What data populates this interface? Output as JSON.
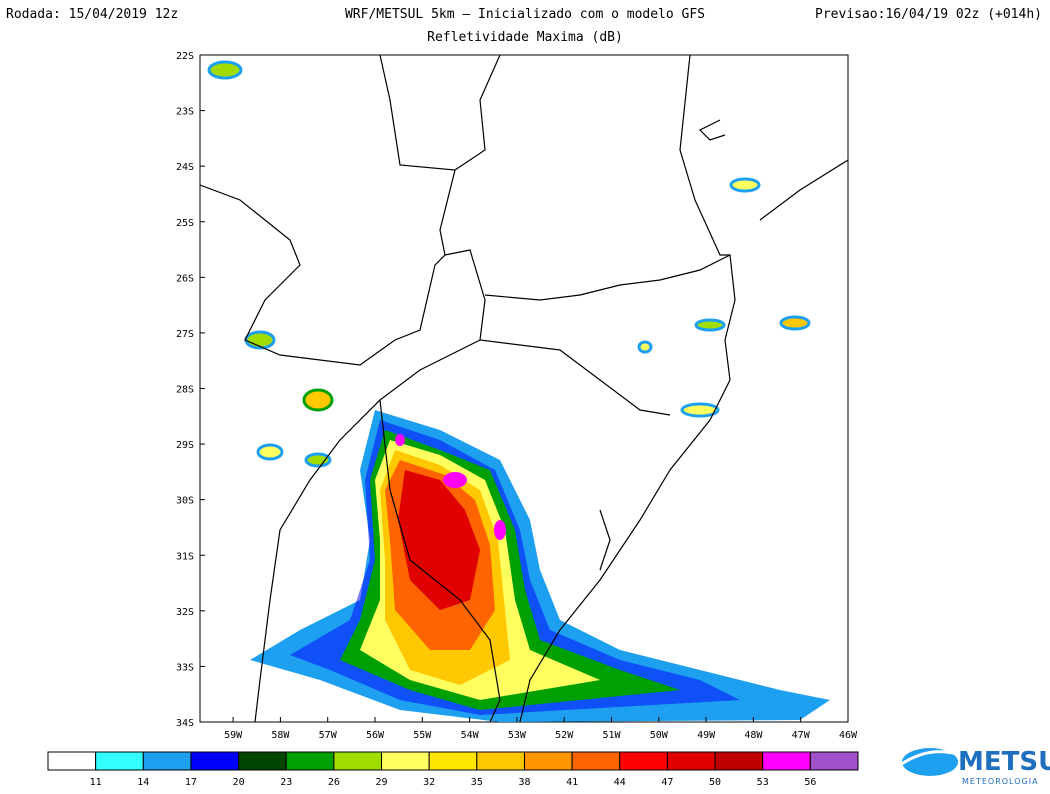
{
  "header": {
    "left": "Rodada: 15/04/2019 12z",
    "center": "WRF/METSUL 5km — Inicializado com o modelo GFS",
    "right": "Previsao:16/04/19 02z (+014h)",
    "subtitle": "Refletividade Maxima (dB)"
  },
  "lat_labels": [
    "22S",
    "23S",
    "24S",
    "25S",
    "26S",
    "27S",
    "28S",
    "29S",
    "30S",
    "31S",
    "32S",
    "33S",
    "34S"
  ],
  "lon_labels": [
    "59W",
    "58W",
    "57W",
    "56W",
    "55W",
    "54W",
    "53W",
    "52W",
    "51W",
    "50W",
    "49W",
    "48W",
    "47W",
    "46W"
  ],
  "colorbar": {
    "labels": [
      "11",
      "14",
      "17",
      "20",
      "23",
      "26",
      "29",
      "32",
      "35",
      "38",
      "41",
      "44",
      "47",
      "50",
      "53",
      "56"
    ],
    "colors": [
      "#ffffff",
      "#33ffff",
      "#1ea0f0",
      "#0000ff",
      "#004600",
      "#00a000",
      "#a0dc00",
      "#ffff60",
      "#ffe600",
      "#ffc800",
      "#ff9600",
      "#ff6400",
      "#ff0000",
      "#e00000",
      "#c00000",
      "#ff00ff",
      "#a050c8"
    ]
  },
  "logo": {
    "name": "METSUL",
    "tagline": "METEOROLOGIA"
  }
}
